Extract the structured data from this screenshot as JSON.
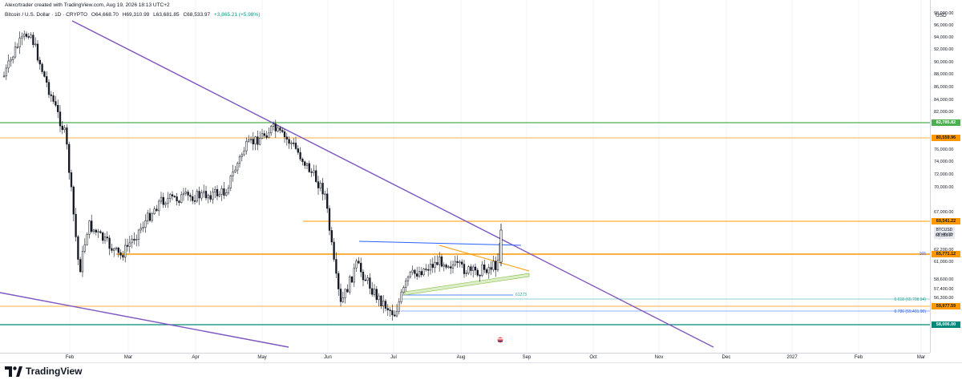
{
  "header": {
    "author_line": "Alexcrtrader created with TradingView.com, Aug 19, 2026 18:13 UTC+2",
    "symbol": "Bitcoin / U.S. Dollar · 1D · CRYPTO",
    "open": "O64,668.70",
    "high": "H69,310.99",
    "low": "L63,681.85",
    "close": "C68,533.97",
    "change": "+3,865.21 (+5.98%)"
  },
  "price_axis": {
    "currency": "USD",
    "ticks": [
      "98,000.00",
      "96,000.00",
      "94,000.00",
      "92,000.00",
      "90,000.00",
      "88,000.00",
      "86,000.00",
      "84,000.00",
      "82,000.00",
      "80,000.00",
      "78,000.00",
      "76,000.00",
      "74,000.00",
      "72,000.00",
      "70,000.00",
      "67,000.00",
      "63,800.00",
      "62,200.00",
      "61,000.00",
      "58,600.00",
      "57,400.00",
      "56,300.00"
    ],
    "labels": [
      {
        "text": "82,785.82",
        "kind": "green"
      },
      {
        "text": "80,559.96",
        "kind": "orange"
      },
      {
        "text": "69,541.22",
        "kind": "orange"
      },
      {
        "text": "65,771.12",
        "kind": "orange"
      },
      {
        "text": "59,977.59",
        "kind": "orange"
      },
      {
        "text": "58,006.00",
        "kind": "teal"
      }
    ],
    "ticker": {
      "name": "BTCUSD",
      "price": "68,533.97",
      "countdown": "07:46:03"
    }
  },
  "time_axis": {
    "months": [
      "Feb",
      "Mar",
      "Apr",
      "May",
      "Jun",
      "Jul",
      "Aug",
      "Sep",
      "Oct",
      "Nov",
      "Dec",
      "2027",
      "Feb",
      "Mar"
    ]
  },
  "annotations": {
    "fib_618": "0.618 (60,708.94)",
    "fib_786": "0.786 (59,401.90)",
    "level_61273": "61273",
    "marker_165": "165"
  },
  "footer": {
    "brand": "TradingView"
  },
  "colors": {
    "purple": "#7e57c2",
    "orange": "#ff9800",
    "green": "#4caf50",
    "teal": "#00897b",
    "blue": "#2962ff",
    "lightgreen": "#8bc34a",
    "candle": "#131722"
  }
}
